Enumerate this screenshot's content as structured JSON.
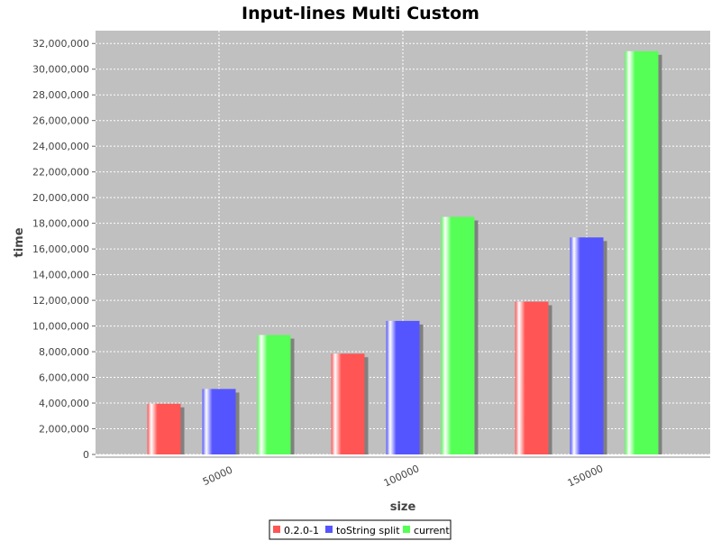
{
  "chart_data": {
    "type": "bar",
    "title": "Input-lines Multi Custom",
    "xlabel": "size",
    "ylabel": "time",
    "categories": [
      "50000",
      "100000",
      "150000"
    ],
    "series": [
      {
        "name": "0.2.0-1",
        "color": "#ff5555",
        "values": [
          3950000,
          7850000,
          11900000
        ]
      },
      {
        "name": "toString split",
        "color": "#5555ff",
        "values": [
          5100000,
          10400000,
          16900000
        ]
      },
      {
        "name": "current",
        "color": "#55ff55",
        "values": [
          9300000,
          18500000,
          31400000
        ]
      }
    ],
    "ylim": [
      0,
      33000000
    ],
    "yticks": [
      0,
      2000000,
      4000000,
      6000000,
      8000000,
      10000000,
      12000000,
      14000000,
      16000000,
      18000000,
      20000000,
      22000000,
      24000000,
      26000000,
      28000000,
      30000000,
      32000000
    ],
    "ytick_labels": [
      "0",
      "2,000,000",
      "4,000,000",
      "6,000,000",
      "8,000,000",
      "10,000,000",
      "12,000,000",
      "14,000,000",
      "16,000,000",
      "18,000,000",
      "20,000,000",
      "22,000,000",
      "24,000,000",
      "26,000,000",
      "28,000,000",
      "30,000,000",
      "32,000,000"
    ],
    "grid": true,
    "legend_position": "bottom-center",
    "plot_background": "#c0c0c0"
  }
}
